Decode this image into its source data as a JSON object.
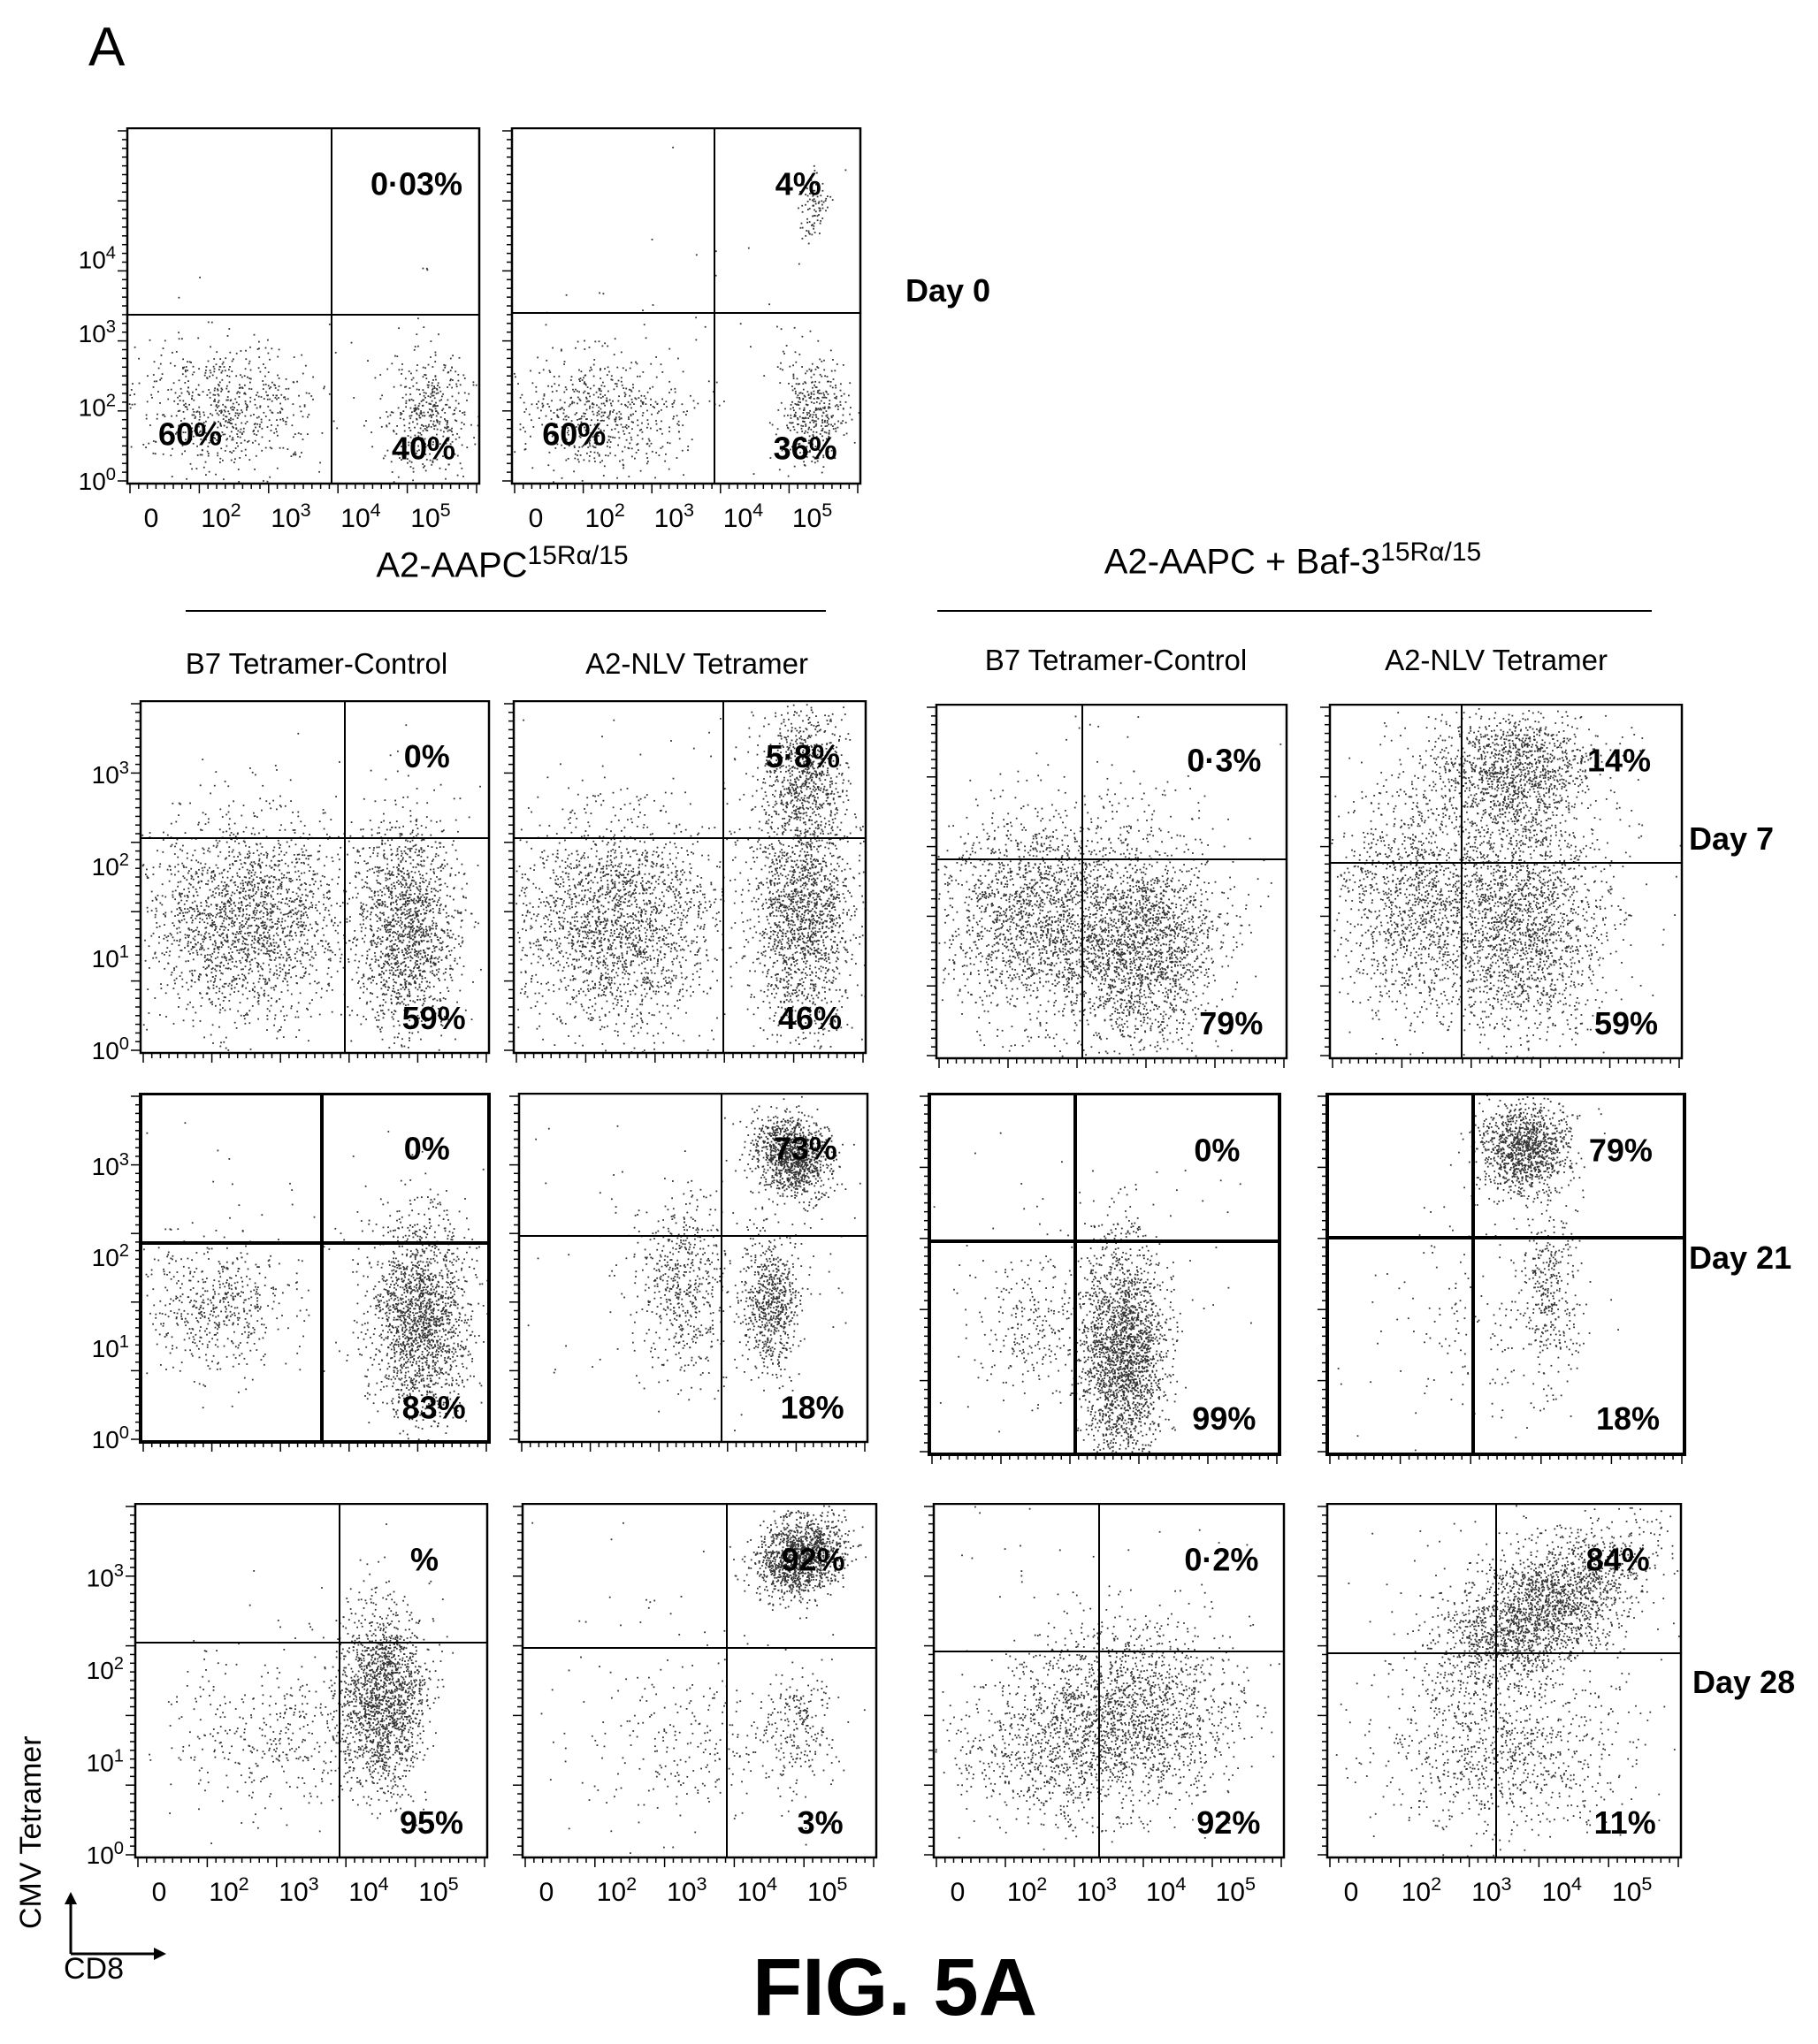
{
  "panel_label": "A",
  "figure_title": "FIG. 5A",
  "axis_hint": {
    "y": "CMV Tetramer",
    "x": "CD8"
  },
  "groups": [
    {
      "title": "A2-AAPC",
      "sup": "15Rα/15"
    },
    {
      "title": "A2-AAPC + Baf-3",
      "sup": "15Rα/15"
    }
  ],
  "columns": [
    "B7 Tetramer-Control",
    "A2-NLV Tetramer",
    "B7 Tetramer-Control",
    "A2-NLV Tetramer"
  ],
  "day_labels": [
    "Day 0",
    "Day 7",
    "Day 21",
    "Day 28"
  ],
  "chart_data": [
    {
      "type": "scatter",
      "day": "Day 0",
      "xlabel": "CD8",
      "ylabel": "CMV Tetramer",
      "x_ticks": [
        "0",
        "10^2",
        "10^3",
        "10^4",
        "10^5"
      ],
      "y_ticks": [
        "10^0",
        "10^2",
        "10^3",
        "10^4"
      ],
      "quadrants": {
        "upper_right": "0·03%",
        "lower_left": "60%",
        "lower_right": "40%"
      }
    },
    {
      "type": "scatter",
      "day": "Day 0",
      "xlabel": "CD8",
      "ylabel": "CMV Tetramer",
      "x_ticks": [
        "0",
        "10^2",
        "10^3",
        "10^4",
        "10^5"
      ],
      "y_ticks": [],
      "quadrants": {
        "upper_right": "4%",
        "lower_left": "60%",
        "lower_right": "36%"
      }
    },
    {
      "type": "scatter",
      "day": "Day 7",
      "group": "A2-AAPC15Rα/15",
      "column": "B7 Tetramer-Control",
      "y_ticks": [
        "10^0",
        "10^1",
        "10^2",
        "10^3"
      ],
      "quadrants": {
        "upper_right": "0%",
        "lower_right": "59%"
      }
    },
    {
      "type": "scatter",
      "day": "Day 7",
      "group": "A2-AAPC15Rα/15",
      "column": "A2-NLV Tetramer",
      "quadrants": {
        "upper_right": "5·8%",
        "lower_right": "46%"
      }
    },
    {
      "type": "scatter",
      "day": "Day 7",
      "group": "A2-AAPC + Baf-315Rα/15",
      "column": "B7 Tetramer-Control",
      "quadrants": {
        "upper_right": "0·3%",
        "lower_right": "79%"
      }
    },
    {
      "type": "scatter",
      "day": "Day 7",
      "group": "A2-AAPC + Baf-315Rα/15",
      "column": "A2-NLV Tetramer",
      "quadrants": {
        "upper_right": "14%",
        "lower_right": "59%"
      }
    },
    {
      "type": "scatter",
      "day": "Day 21",
      "group": "A2-AAPC15Rα/15",
      "column": "B7 Tetramer-Control",
      "y_ticks": [
        "10^0",
        "10^1",
        "10^2",
        "10^3"
      ],
      "quadrants": {
        "upper_right": "0%",
        "lower_right": "83%"
      }
    },
    {
      "type": "scatter",
      "day": "Day 21",
      "group": "A2-AAPC15Rα/15",
      "column": "A2-NLV Tetramer",
      "quadrants": {
        "upper_right": "73%",
        "lower_right": "18%"
      }
    },
    {
      "type": "scatter",
      "day": "Day 21",
      "group": "A2-AAPC + Baf-315Rα/15",
      "column": "B7 Tetramer-Control",
      "quadrants": {
        "upper_right": "0%",
        "lower_right": "99%"
      }
    },
    {
      "type": "scatter",
      "day": "Day 21",
      "group": "A2-AAPC + Baf-315Rα/15",
      "column": "A2-NLV Tetramer",
      "quadrants": {
        "upper_right": "79%",
        "lower_right": "18%"
      }
    },
    {
      "type": "scatter",
      "day": "Day 28",
      "group": "A2-AAPC15Rα/15",
      "column": "B7 Tetramer-Control",
      "x_ticks": [
        "0",
        "10^2",
        "10^3",
        "10^4",
        "10^5"
      ],
      "y_ticks": [
        "10^0",
        "10^1",
        "10^2",
        "10^3"
      ],
      "quadrants": {
        "upper_right": "%",
        "lower_right": "95%"
      }
    },
    {
      "type": "scatter",
      "day": "Day 28",
      "group": "A2-AAPC15Rα/15",
      "column": "A2-NLV Tetramer",
      "x_ticks": [
        "0",
        "10^2",
        "10^3",
        "10^4",
        "10^5"
      ],
      "quadrants": {
        "upper_right": "92%",
        "lower_right": "3%"
      }
    },
    {
      "type": "scatter",
      "day": "Day 28",
      "group": "A2-AAPC + Baf-315Rα/15",
      "column": "B7 Tetramer-Control",
      "x_ticks": [
        "0",
        "10^2",
        "10^3",
        "10^4",
        "10^5"
      ],
      "quadrants": {
        "upper_right": "0·2%",
        "lower_right": "92%"
      }
    },
    {
      "type": "scatter",
      "day": "Day 28",
      "group": "A2-AAPC + Baf-315Rα/15",
      "column": "A2-NLV Tetramer",
      "x_ticks": [
        "0",
        "10^2",
        "10^3",
        "10^4",
        "10^5"
      ],
      "quadrants": {
        "upper_right": "84%",
        "lower_right": "11%"
      }
    }
  ]
}
